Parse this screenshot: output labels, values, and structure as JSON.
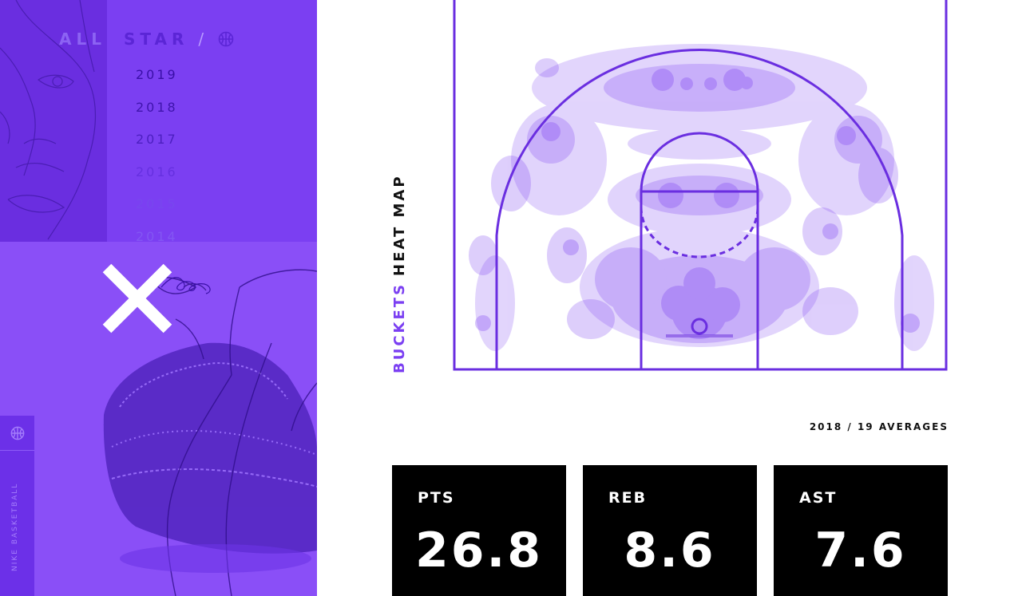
{
  "brand": {
    "all": "ALL",
    "star": "STAR",
    "slash": "/",
    "icon": "basketball-icon"
  },
  "years": [
    {
      "label": "2019",
      "color": "#3a0fa8"
    },
    {
      "label": "2018",
      "color": "#3f14ad"
    },
    {
      "label": "2017",
      "color": "#4c1fc0"
    },
    {
      "label": "2016",
      "color": "#6630e0"
    },
    {
      "label": "2015",
      "color": "#7847ee"
    },
    {
      "label": "2014",
      "color": "#8356f3"
    }
  ],
  "close_icon": "close-icon",
  "side_tab": {
    "icon": "basketball-icon",
    "label": "NIKE BASKETBALL"
  },
  "heatmap": {
    "title_highlight": "BUCKETS",
    "title_rest": "HEAT MAP"
  },
  "stats": {
    "period": "2018 / 19 AVERAGES",
    "cards": [
      {
        "label": "PTS",
        "value": "26.8"
      },
      {
        "label": "REB",
        "value": "8.6"
      },
      {
        "label": "AST",
        "value": "7.6"
      }
    ]
  },
  "colors": {
    "accent": "#7b3ff2",
    "court_line": "#6a2ee0",
    "stat_bg": "#000000"
  }
}
